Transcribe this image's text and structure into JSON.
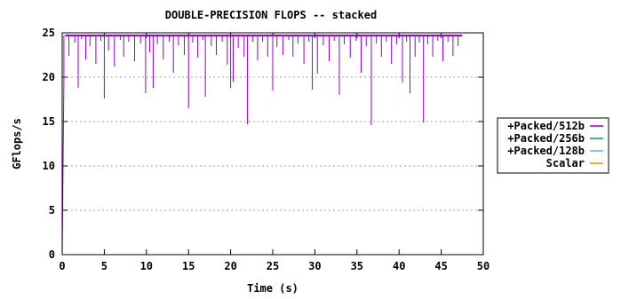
{
  "chart_data": {
    "type": "line",
    "title": "DOUBLE-PRECISION FLOPS -- stacked",
    "xlabel": "Time (s)",
    "ylabel": "GFlops/s",
    "xlim": [
      0,
      50
    ],
    "ylim": [
      0,
      25
    ],
    "xticks": [
      0,
      5,
      10,
      15,
      20,
      25,
      30,
      35,
      40,
      45,
      50
    ],
    "yticks": [
      0,
      5,
      10,
      15,
      20,
      25
    ],
    "grid": true,
    "legend_position": "right",
    "baseline": 24.7,
    "x_end": 47.5,
    "series": [
      {
        "name": "+Packed/512b",
        "color": "#9400d3",
        "points": [
          [
            0.0,
            0.0
          ],
          [
            0.2,
            19.5
          ],
          [
            0.35,
            24.7
          ],
          [
            0.8,
            22.4
          ],
          [
            1.5,
            23.9
          ],
          [
            1.9,
            18.8
          ],
          [
            2.3,
            24.3
          ],
          [
            2.8,
            22.0
          ],
          [
            3.3,
            23.5
          ],
          [
            4.0,
            21.5
          ],
          [
            4.6,
            24.1
          ],
          [
            5.0,
            17.6
          ],
          [
            5.5,
            23.0
          ],
          [
            6.2,
            21.2
          ],
          [
            6.9,
            24.2
          ],
          [
            7.3,
            22.3
          ],
          [
            7.9,
            24.0
          ],
          [
            8.6,
            21.8
          ],
          [
            9.3,
            23.8
          ],
          [
            9.9,
            18.2
          ],
          [
            10.4,
            22.8
          ],
          [
            10.8,
            18.8
          ],
          [
            11.3,
            23.7
          ],
          [
            12.0,
            22.0
          ],
          [
            12.7,
            24.0
          ],
          [
            13.2,
            20.5
          ],
          [
            13.8,
            23.6
          ],
          [
            14.5,
            22.5
          ],
          [
            15.0,
            16.5
          ],
          [
            15.5,
            23.9
          ],
          [
            16.1,
            22.2
          ],
          [
            16.7,
            24.2
          ],
          [
            17.0,
            17.8
          ],
          [
            17.7,
            23.5
          ],
          [
            18.3,
            22.5
          ],
          [
            19.0,
            24.0
          ],
          [
            19.6,
            21.4
          ],
          [
            20.0,
            18.8
          ],
          [
            20.3,
            19.5
          ],
          [
            20.9,
            23.3
          ],
          [
            21.6,
            22.3
          ],
          [
            22.0,
            14.7
          ],
          [
            22.6,
            24.0
          ],
          [
            23.2,
            21.9
          ],
          [
            23.8,
            24.0
          ],
          [
            24.4,
            22.3
          ],
          [
            25.0,
            18.5
          ],
          [
            25.5,
            23.4
          ],
          [
            26.2,
            22.5
          ],
          [
            26.9,
            24.2
          ],
          [
            27.4,
            22.3
          ],
          [
            28.0,
            23.8
          ],
          [
            28.7,
            21.5
          ],
          [
            29.3,
            24.0
          ],
          [
            29.7,
            18.6
          ],
          [
            30.3,
            20.4
          ],
          [
            31.0,
            23.6
          ],
          [
            31.7,
            21.8
          ],
          [
            32.3,
            24.1
          ],
          [
            32.9,
            18.0
          ],
          [
            33.5,
            23.7
          ],
          [
            34.2,
            22.2
          ],
          [
            34.9,
            24.1
          ],
          [
            35.5,
            20.5
          ],
          [
            36.1,
            23.5
          ],
          [
            36.7,
            14.6
          ],
          [
            37.3,
            23.8
          ],
          [
            37.9,
            22.3
          ],
          [
            38.5,
            24.0
          ],
          [
            39.1,
            21.5
          ],
          [
            39.7,
            23.7
          ],
          [
            40.4,
            19.4
          ],
          [
            40.9,
            24.0
          ],
          [
            41.3,
            18.2
          ],
          [
            41.9,
            22.3
          ],
          [
            42.4,
            23.9
          ],
          [
            42.9,
            14.9
          ],
          [
            43.4,
            23.7
          ],
          [
            44.0,
            22.3
          ],
          [
            44.6,
            24.1
          ],
          [
            45.2,
            21.8
          ],
          [
            45.8,
            24.0
          ],
          [
            46.4,
            22.4
          ],
          [
            47.0,
            23.5
          ],
          [
            47.5,
            24.7
          ]
        ]
      },
      {
        "name": "+Packed/256b",
        "color": "#009e73",
        "points": []
      },
      {
        "name": "+Packed/128b",
        "color": "#56b4e9",
        "points": []
      },
      {
        "name": "Scalar",
        "color": "#e69f00",
        "points": []
      }
    ]
  }
}
